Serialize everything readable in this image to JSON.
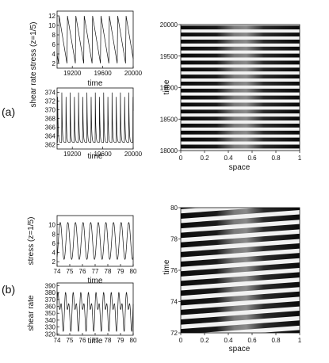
{
  "panels": [
    {
      "label": "(a)",
      "stress_plot": {
        "type": "line",
        "ylabel": "stress (z=1/5)",
        "xlabel": "time",
        "xlim": [
          19000,
          20000
        ],
        "ylim": [
          1,
          13
        ],
        "xticks": [
          19200,
          19600,
          20000
        ],
        "yticks": [
          2,
          4,
          6,
          8,
          10,
          12
        ],
        "waveform": "sawtooth",
        "min": 2,
        "max": 12,
        "period": 110,
        "phase": 19020
      },
      "shear_plot": {
        "type": "line",
        "ylabel": "shear rate",
        "xlabel": "time",
        "xlim": [
          19000,
          20000
        ],
        "ylim": [
          361,
          375
        ],
        "xticks": [
          19200,
          19600,
          20000
        ],
        "yticks": [
          362,
          364,
          366,
          368,
          370,
          372,
          374
        ],
        "waveform": "spikes",
        "min": 362.5,
        "max": 374,
        "period": 55,
        "phase": 19005
      },
      "heatmap": {
        "type": "heatmap",
        "xlabel": "space",
        "ylabel": "time",
        "xlim": [
          0,
          1
        ],
        "ylim": [
          18000,
          20000
        ],
        "xticks": [
          "0",
          "0.2",
          "0.4",
          "0.6",
          "0.8",
          "1"
        ],
        "yticks": [
          18000,
          18500,
          19000,
          19500,
          20000
        ],
        "band_count": 18,
        "tilt": 0.0,
        "center_blur": 0.5
      }
    },
    {
      "label": "(b)",
      "stress_plot": {
        "type": "line",
        "ylabel": "stress (z=1/5)",
        "xlabel": "time",
        "xlim": [
          74,
          80
        ],
        "ylim": [
          1,
          12
        ],
        "xticks": [
          74,
          75,
          76,
          77,
          78,
          79,
          80
        ],
        "yticks": [
          2,
          4,
          6,
          8,
          10
        ],
        "waveform": "sine",
        "min": 2.5,
        "max": 10.5,
        "period": 0.6,
        "phase": 74.1
      },
      "shear_plot": {
        "type": "line",
        "ylabel": "shear rate",
        "xlabel": "time",
        "xlim": [
          74,
          80
        ],
        "ylim": [
          318,
          394
        ],
        "xticks": [
          74,
          75,
          76,
          77,
          78,
          79,
          80
        ],
        "yticks": [
          320,
          330,
          340,
          350,
          360,
          370,
          380,
          390
        ],
        "waveform": "double",
        "min": 322,
        "max": 388,
        "period": 0.6,
        "phase": 74.0
      },
      "heatmap": {
        "type": "heatmap",
        "xlabel": "space",
        "ylabel": "time",
        "xlim": [
          0,
          1
        ],
        "ylim": [
          72,
          80
        ],
        "xticks": [
          "0",
          "0.2",
          "0.4",
          "0.6",
          "0.8",
          "1"
        ],
        "yticks": [
          72,
          74,
          76,
          78,
          80
        ],
        "band_count": 13,
        "tilt": 0.45,
        "center_blur": 0.25
      }
    }
  ]
}
